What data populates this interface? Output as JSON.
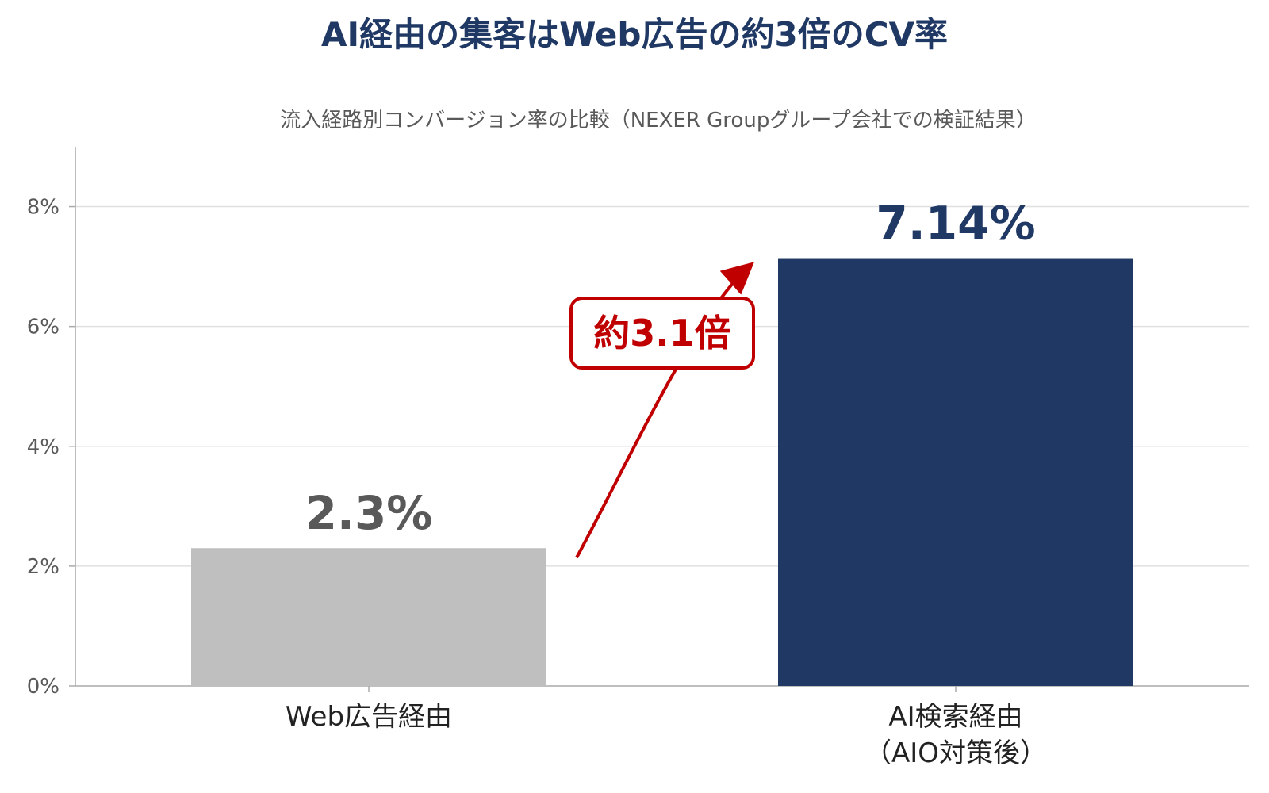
{
  "chart_data": {
    "type": "bar",
    "title": "AI経由の集客はWeb広告の約3倍のCV率",
    "subtitle": "流入経路別コンバージョン率の比較（NEXER Groupグループ会社での検証結果）",
    "categories": [
      [
        "Web広告経由"
      ],
      [
        "AI検索経由",
        "（AIO対策後）"
      ]
    ],
    "values": [
      2.3,
      7.14
    ],
    "value_labels": [
      "2.3%",
      "7.14%"
    ],
    "ylim": [
      0,
      9
    ],
    "yticks": [
      0,
      2,
      4,
      6,
      8
    ],
    "ytick_labels": [
      "0%",
      "2%",
      "4%",
      "6%",
      "8%"
    ],
    "annotation": "約3.1倍",
    "grid": true,
    "colors": {
      "title": "#1f3864",
      "subtitle": "#595959",
      "bars": [
        "#bfbfbf",
        "#1f3864"
      ],
      "value_labels": [
        "#595959",
        "#1f3864"
      ],
      "annotation": "#c00000",
      "grid": "#e0e0e0",
      "axis": "#aaaaaa",
      "tick_text": "#595959",
      "category_text": "#222222"
    }
  }
}
